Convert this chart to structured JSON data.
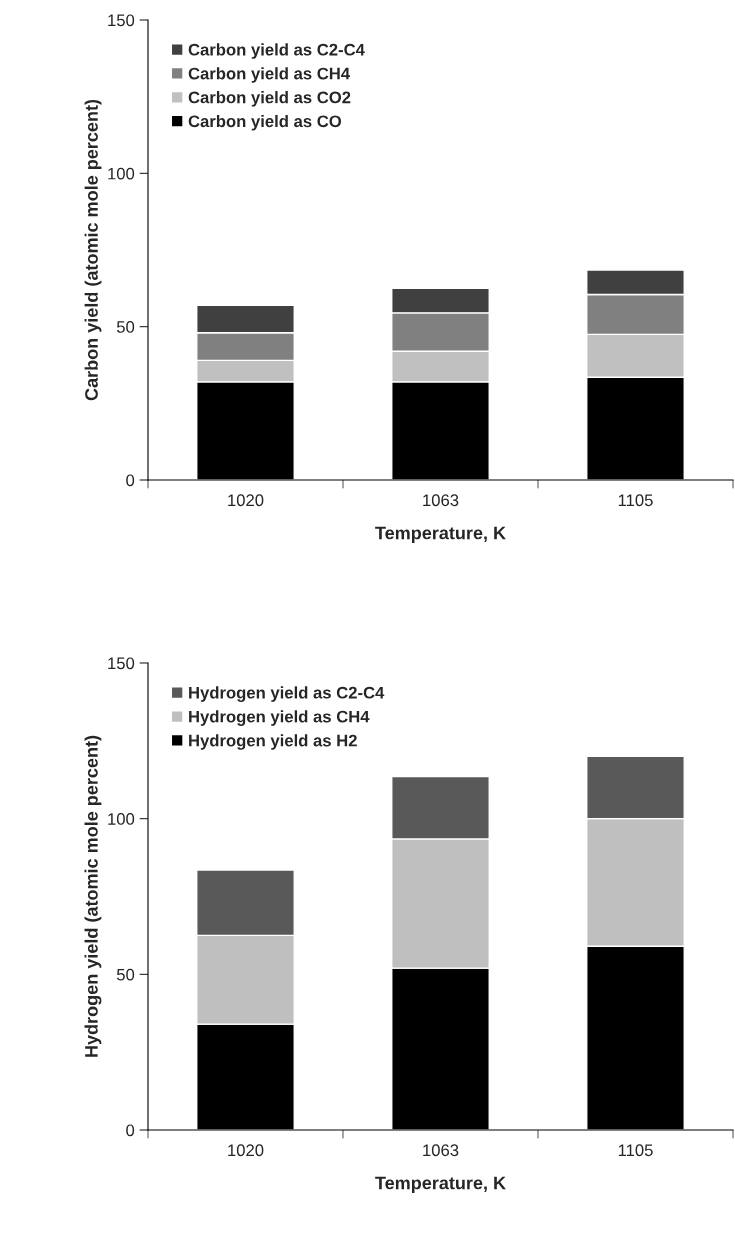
{
  "chart_data": [
    {
      "type": "bar",
      "stacked": true,
      "categories": [
        "1020",
        "1063",
        "1105"
      ],
      "xlabel": "Temperature, K",
      "ylabel": "Carbon yield (atomic mole percent)",
      "ylim": [
        0,
        150
      ],
      "yticks": [
        0,
        50,
        100,
        150
      ],
      "legend": "top left",
      "grid": false,
      "series": [
        {
          "name": "Carbon yield as CO",
          "color": "#000000",
          "values": [
            32,
            32,
            33.5
          ]
        },
        {
          "name": "Carbon yield as CO2",
          "color": "#c0c0c0",
          "values": [
            7,
            10,
            14
          ]
        },
        {
          "name": "Carbon yield as CH4",
          "color": "#808080",
          "values": [
            9,
            12.5,
            13
          ]
        },
        {
          "name": "Carbon yield as C2-C4",
          "color": "#404040",
          "values": [
            9,
            8,
            8
          ]
        }
      ]
    },
    {
      "type": "bar",
      "stacked": true,
      "categories": [
        "1020",
        "1063",
        "1105"
      ],
      "xlabel": "Temperature, K",
      "ylabel": "Hydrogen yield (atomic mole percent)",
      "ylim": [
        0,
        150
      ],
      "yticks": [
        0,
        50,
        100,
        150
      ],
      "legend": "top left",
      "grid": false,
      "series": [
        {
          "name": "Hydrogen yield as H2",
          "color": "#000000",
          "values": [
            34,
            52,
            59
          ]
        },
        {
          "name": "Hydrogen yield as CH4",
          "color": "#bfbfbf",
          "values": [
            28.5,
            41.5,
            41
          ]
        },
        {
          "name": "Hydrogen yield as C2-C4",
          "color": "#595959",
          "values": [
            21,
            20,
            20
          ]
        }
      ]
    }
  ]
}
